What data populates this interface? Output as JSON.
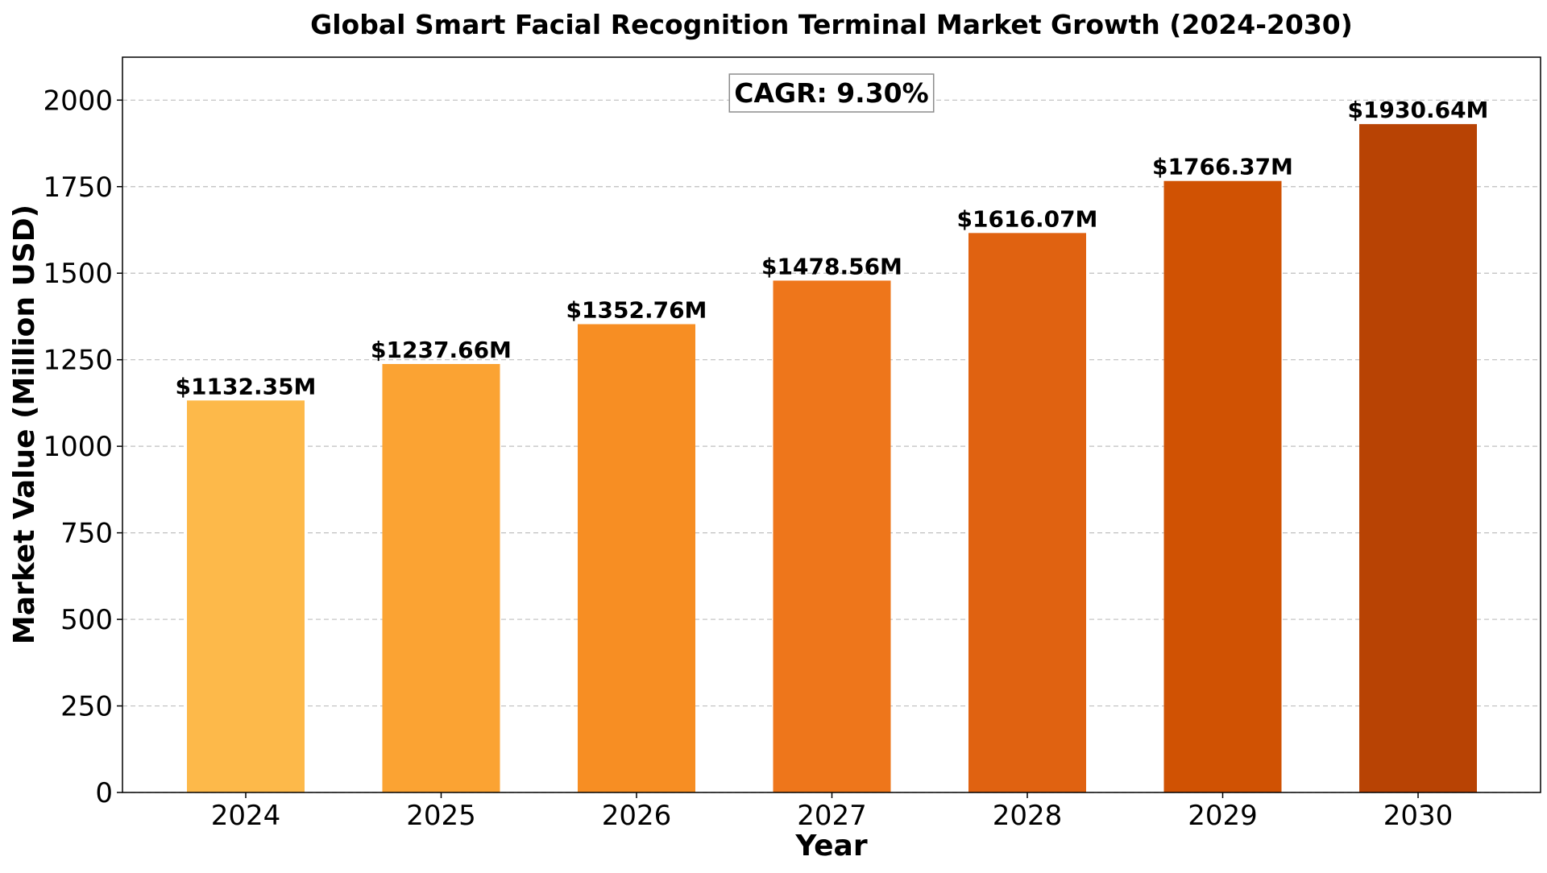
{
  "chart_data": {
    "type": "bar",
    "title": "Global Smart Facial Recognition Terminal Market Growth (2024-2030)",
    "xlabel": "Year",
    "ylabel": "Market Value (Million USD)",
    "categories": [
      "2024",
      "2025",
      "2026",
      "2027",
      "2028",
      "2029",
      "2030"
    ],
    "values": [
      1132.35,
      1237.66,
      1352.76,
      1478.56,
      1616.07,
      1766.37,
      1930.64
    ],
    "data_labels": [
      "$1132.35M",
      "$1237.66M",
      "$1352.76M",
      "$1478.56M",
      "$1616.07M",
      "$1766.37M",
      "$1930.64M"
    ],
    "bar_colors": [
      "#fdb94a",
      "#fba333",
      "#f78e23",
      "#ee761b",
      "#e06211",
      "#d05203",
      "#b84304"
    ],
    "ylim": [
      0,
      2124
    ],
    "yticks": [
      0,
      250,
      500,
      750,
      1000,
      1250,
      1500,
      1750,
      2000
    ],
    "grid": "y-dashed",
    "annotation": "CAGR: 9.30%"
  }
}
